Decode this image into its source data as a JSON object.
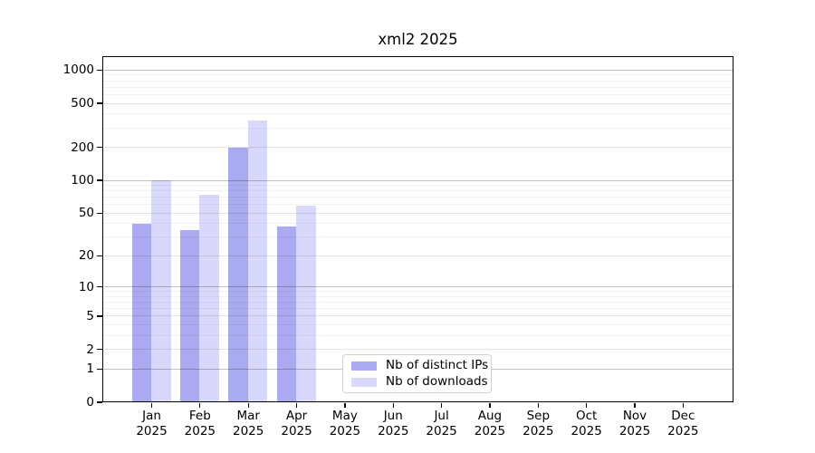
{
  "title": "xml2 2025",
  "chart_data": {
    "type": "bar",
    "title": "xml2 2025",
    "categories": [
      "Jan 2025",
      "Feb 2025",
      "Mar 2025",
      "Apr 2025",
      "May 2025",
      "Jun 2025",
      "Jul 2025",
      "Aug 2025",
      "Sep 2025",
      "Oct 2025",
      "Nov 2025",
      "Dec 2025"
    ],
    "series": [
      {
        "name": "Nb of distinct IPs",
        "color": "#aaaaf0",
        "values": [
          40,
          35,
          200,
          38,
          0,
          0,
          0,
          0,
          0,
          0,
          0,
          0
        ]
      },
      {
        "name": "Nb of downloads",
        "color": "#d8d8fa",
        "values": [
          100,
          74,
          350,
          59,
          0,
          0,
          0,
          0,
          0,
          0,
          0,
          0
        ]
      }
    ],
    "yscale": "log1p",
    "yticks": [
      0,
      1,
      2,
      5,
      10,
      20,
      50,
      100,
      200,
      500,
      1000
    ],
    "ylim": [
      0,
      1400
    ],
    "xlabel": "",
    "ylabel": "",
    "grid": true,
    "legend_position": "lower center",
    "colors": {
      "spine": "#000000",
      "grid_decade": "rgba(0,0,0,0.24)",
      "grid_labeled": "rgba(0,0,0,0.11)",
      "grid_minor": "rgba(0,0,0,0.055)"
    }
  }
}
